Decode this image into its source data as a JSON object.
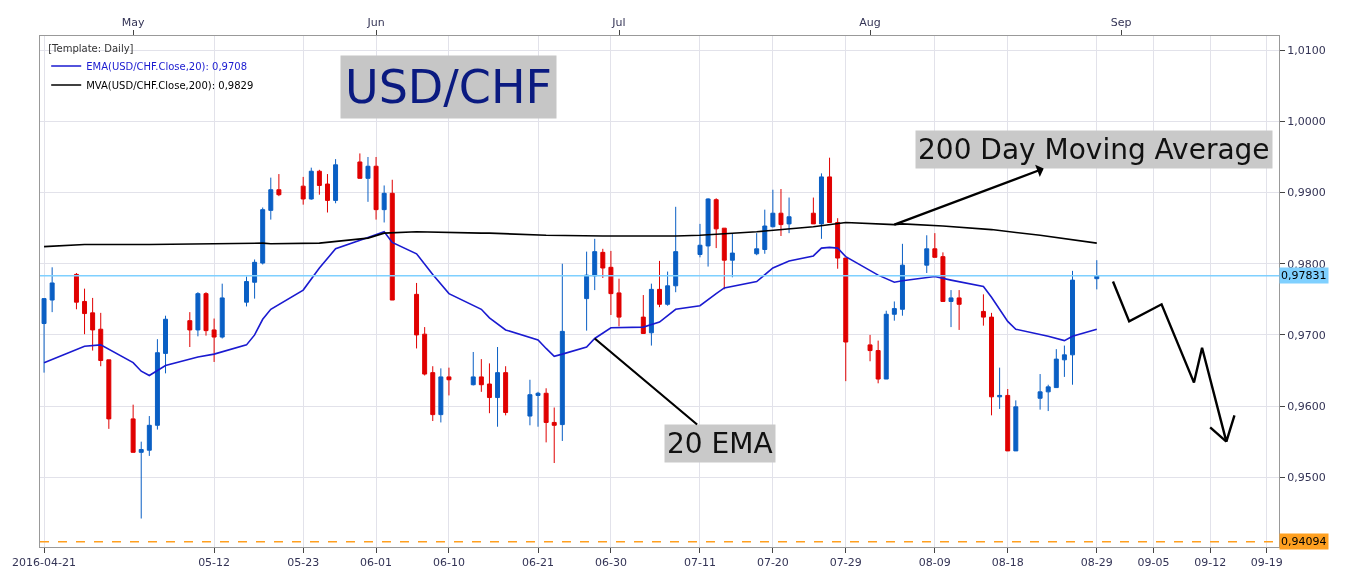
{
  "chart_data": {
    "type": "candlestick",
    "title": "USD/CHF",
    "legend_title": "[Template: Daily]",
    "x": [
      "2016-04-21",
      "2016-04-22",
      "2016-04-25",
      "2016-04-26",
      "2016-04-27",
      "2016-04-28",
      "2016-04-29",
      "2016-05-02",
      "2016-05-03",
      "2016-05-04",
      "2016-05-05",
      "2016-05-06",
      "2016-05-09",
      "2016-05-10",
      "2016-05-11",
      "2016-05-12",
      "2016-05-13",
      "2016-05-16",
      "2016-05-17",
      "2016-05-18",
      "2016-05-19",
      "2016-05-20",
      "2016-05-23",
      "2016-05-24",
      "2016-05-25",
      "2016-05-26",
      "2016-05-27",
      "2016-05-30",
      "2016-05-31",
      "2016-06-01",
      "2016-06-02",
      "2016-06-03",
      "2016-06-06",
      "2016-06-07",
      "2016-06-08",
      "2016-06-09",
      "2016-06-10",
      "2016-06-13",
      "2016-06-14",
      "2016-06-15",
      "2016-06-16",
      "2016-06-17",
      "2016-06-20",
      "2016-06-21",
      "2016-06-22",
      "2016-06-23",
      "2016-06-24",
      "2016-06-27",
      "2016-06-28",
      "2016-06-29",
      "2016-06-30",
      "2016-07-01",
      "2016-07-04",
      "2016-07-05",
      "2016-07-06",
      "2016-07-07",
      "2016-07-08",
      "2016-07-11",
      "2016-07-12",
      "2016-07-13",
      "2016-07-14",
      "2016-07-15",
      "2016-07-18",
      "2016-07-19",
      "2016-07-20",
      "2016-07-21",
      "2016-07-22",
      "2016-07-25",
      "2016-07-26",
      "2016-07-27",
      "2016-07-28",
      "2016-07-29",
      "2016-08-01",
      "2016-08-02",
      "2016-08-03",
      "2016-08-04",
      "2016-08-05",
      "2016-08-08",
      "2016-08-09",
      "2016-08-10",
      "2016-08-11",
      "2016-08-12",
      "2016-08-15",
      "2016-08-16",
      "2016-08-17",
      "2016-08-18",
      "2016-08-19",
      "2016-08-22",
      "2016-08-23",
      "2016-08-24",
      "2016-08-25",
      "2016-08-26",
      "2016-08-29"
    ],
    "ohlc": [
      [
        0.9716,
        0.9751,
        0.9647,
        0.9751
      ],
      [
        0.9749,
        0.9795,
        0.9732,
        0.9773
      ],
      [
        0.9785,
        0.9787,
        0.9736,
        0.9746
      ],
      [
        0.9747,
        0.9765,
        0.9701,
        0.973
      ],
      [
        0.9731,
        0.9752,
        0.9678,
        0.9707
      ],
      [
        0.9708,
        0.9731,
        0.9656,
        0.9664
      ],
      [
        0.9665,
        0.9665,
        0.9568,
        0.9582
      ],
      [
        0.9582,
        0.9602,
        0.9535,
        0.9535
      ],
      [
        0.9535,
        0.955,
        0.9442,
        0.9539
      ],
      [
        0.9538,
        0.9586,
        0.953,
        0.9573
      ],
      [
        0.9573,
        0.9694,
        0.9567,
        0.9675
      ],
      [
        0.9674,
        0.9727,
        0.9646,
        0.9722
      ],
      [
        0.972,
        0.9732,
        0.9683,
        0.9707
      ],
      [
        0.9707,
        0.976,
        0.9698,
        0.9758
      ],
      [
        0.9758,
        0.976,
        0.9699,
        0.9706
      ],
      [
        0.9707,
        0.9723,
        0.9662,
        0.9697
      ],
      [
        0.9697,
        0.9772,
        0.9695,
        0.9752
      ],
      [
        0.9746,
        0.9782,
        0.974,
        0.9775
      ],
      [
        0.9774,
        0.9806,
        0.9751,
        0.9802
      ],
      [
        0.9801,
        0.9879,
        0.9799,
        0.9876
      ],
      [
        0.9875,
        0.9921,
        0.9862,
        0.9904
      ],
      [
        0.9904,
        0.9926,
        0.9895,
        0.9897
      ],
      [
        0.9909,
        0.9922,
        0.9883,
        0.9891
      ],
      [
        0.9891,
        0.9935,
        0.989,
        0.993
      ],
      [
        0.993,
        0.9932,
        0.9897,
        0.991
      ],
      [
        0.9912,
        0.9926,
        0.9872,
        0.9889
      ],
      [
        0.9889,
        0.9947,
        0.9885,
        0.9939
      ],
      [
        0.9943,
        0.9955,
        0.992,
        0.992
      ],
      [
        0.992,
        0.995,
        0.9887,
        0.9937
      ],
      [
        0.9937,
        0.995,
        0.9862,
        0.9876
      ],
      [
        0.9876,
        0.991,
        0.9858,
        0.9899
      ],
      [
        0.9899,
        0.9918,
        0.9749,
        0.9749
      ],
      [
        0.9757,
        0.9773,
        0.9681,
        0.97
      ],
      [
        0.9701,
        0.9711,
        0.9643,
        0.9645
      ],
      [
        0.9647,
        0.9656,
        0.9579,
        0.9588
      ],
      [
        0.9588,
        0.9653,
        0.9577,
        0.9641
      ],
      [
        0.9641,
        0.9654,
        0.9615,
        0.9637
      ],
      [
        0.963,
        0.9676,
        0.9629,
        0.9641
      ],
      [
        0.9641,
        0.9666,
        0.962,
        0.963
      ],
      [
        0.9631,
        0.966,
        0.959,
        0.9612
      ],
      [
        0.9612,
        0.9683,
        0.9571,
        0.9647
      ],
      [
        0.9647,
        0.9656,
        0.9587,
        0.9591
      ],
      [
        0.9586,
        0.9637,
        0.9573,
        0.9616
      ],
      [
        0.9615,
        0.962,
        0.9571,
        0.9618
      ],
      [
        0.9618,
        0.9625,
        0.9549,
        0.9577
      ],
      [
        0.9577,
        0.9598,
        0.952,
        0.9573
      ],
      [
        0.9574,
        0.98,
        0.9551,
        0.9705
      ],
      [
        0.9751,
        0.9817,
        0.9706,
        0.9784
      ],
      [
        0.9783,
        0.9835,
        0.9763,
        0.9817
      ],
      [
        0.9816,
        0.9821,
        0.978,
        0.9794
      ],
      [
        0.9795,
        0.9818,
        0.9728,
        0.9758
      ],
      [
        0.9759,
        0.9779,
        0.9712,
        0.9725
      ],
      [
        0.9725,
        0.9756,
        0.9702,
        0.9702
      ],
      [
        0.9703,
        0.9772,
        0.9685,
        0.9764
      ],
      [
        0.9764,
        0.9804,
        0.9739,
        0.9743
      ],
      [
        0.9743,
        0.9789,
        0.9741,
        0.9769
      ],
      [
        0.9769,
        0.988,
        0.976,
        0.9817
      ],
      [
        0.9813,
        0.9856,
        0.9809,
        0.9826
      ],
      [
        0.9825,
        0.9892,
        0.9796,
        0.9891
      ],
      [
        0.989,
        0.9892,
        0.9822,
        0.9849
      ],
      [
        0.985,
        0.985,
        0.9764,
        0.9805
      ],
      [
        0.9805,
        0.9843,
        0.9781,
        0.9815
      ],
      [
        0.9814,
        0.9843,
        0.9812,
        0.9821
      ],
      [
        0.982,
        0.9876,
        0.9814,
        0.9853
      ],
      [
        0.9852,
        0.9904,
        0.9851,
        0.9871
      ],
      [
        0.9871,
        0.9905,
        0.9839,
        0.9855
      ],
      [
        0.9856,
        0.9893,
        0.9843,
        0.9866
      ],
      [
        0.9871,
        0.9893,
        0.9856,
        0.9856
      ],
      [
        0.9856,
        0.9927,
        0.9835,
        0.9922
      ],
      [
        0.9922,
        0.9949,
        0.9858,
        0.9858
      ],
      [
        0.9858,
        0.9864,
        0.9793,
        0.9808
      ],
      [
        0.9808,
        0.9808,
        0.9635,
        0.969
      ],
      [
        0.9686,
        0.97,
        0.9663,
        0.9678
      ],
      [
        0.9678,
        0.9692,
        0.9632,
        0.9638
      ],
      [
        0.9638,
        0.9734,
        0.9638,
        0.9729
      ],
      [
        0.9729,
        0.9747,
        0.972,
        0.9737
      ],
      [
        0.9736,
        0.9828,
        0.9727,
        0.9798
      ],
      [
        0.9798,
        0.984,
        0.9787,
        0.9821
      ],
      [
        0.9821,
        0.9843,
        0.9809,
        0.9809
      ],
      [
        0.981,
        0.9816,
        0.9747,
        0.9747
      ],
      [
        0.9747,
        0.9763,
        0.9711,
        0.9752
      ],
      [
        0.9752,
        0.9763,
        0.9707,
        0.9743
      ],
      [
        0.9733,
        0.9757,
        0.9713,
        0.9725
      ],
      [
        0.9725,
        0.9731,
        0.9587,
        0.9613
      ],
      [
        0.9613,
        0.9654,
        0.9596,
        0.9615
      ],
      [
        0.9615,
        0.9624,
        0.9537,
        0.9537
      ],
      [
        0.9537,
        0.9608,
        0.9537,
        0.9599
      ],
      [
        0.9611,
        0.9645,
        0.9595,
        0.962
      ],
      [
        0.962,
        0.963,
        0.9593,
        0.9627
      ],
      [
        0.9626,
        0.968,
        0.9626,
        0.9666
      ],
      [
        0.9665,
        0.9685,
        0.9641,
        0.9672
      ],
      [
        0.9672,
        0.979,
        0.963,
        0.9777
      ],
      [
        0.9779,
        0.9805,
        0.9764,
        0.97831
      ]
    ],
    "colors": [
      "#0a5fc4",
      "#0a5fc4",
      "#e00000",
      "#e00000",
      "#e00000",
      "#e00000",
      "#e00000",
      "#e00000",
      "#0a5fc4",
      "#0a5fc4",
      "#0a5fc4",
      "#0a5fc4",
      "#e00000",
      "#0a5fc4",
      "#e00000",
      "#e00000",
      "#0a5fc4",
      "#0a5fc4",
      "#0a5fc4",
      "#0a5fc4",
      "#0a5fc4",
      "#e00000",
      "#e00000",
      "#0a5fc4",
      "#e00000",
      "#e00000",
      "#0a5fc4",
      "#e00000",
      "#0a5fc4",
      "#e00000",
      "#0a5fc4",
      "#e00000",
      "#e00000",
      "#e00000",
      "#e00000",
      "#0a5fc4",
      "#e00000",
      "#0a5fc4",
      "#e00000",
      "#e00000",
      "#0a5fc4",
      "#e00000",
      "#0a5fc4",
      "#0a5fc4",
      "#e00000",
      "#e00000",
      "#0a5fc4",
      "#0a5fc4",
      "#0a5fc4",
      "#e00000",
      "#e00000",
      "#e00000",
      "#e00000",
      "#0a5fc4",
      "#e00000",
      "#0a5fc4",
      "#0a5fc4",
      "#0a5fc4",
      "#0a5fc4",
      "#e00000",
      "#e00000",
      "#0a5fc4",
      "#0a5fc4",
      "#0a5fc4",
      "#0a5fc4",
      "#e00000",
      "#0a5fc4",
      "#e00000",
      "#0a5fc4",
      "#e00000",
      "#e00000",
      "#e00000",
      "#e00000",
      "#e00000",
      "#0a5fc4",
      "#0a5fc4",
      "#0a5fc4",
      "#0a5fc4",
      "#e00000",
      "#e00000",
      "#0a5fc4",
      "#e00000",
      "#e00000",
      "#e00000",
      "#0a5fc4",
      "#e00000",
      "#0a5fc4",
      "#0a5fc4",
      "#0a5fc4",
      "#0a5fc4",
      "#0a5fc4",
      "#0a5fc4",
      "#0a5fc4"
    ],
    "series": [
      {
        "type": "line",
        "name": "EMA(USD/CHF.Close,20): 0,9708",
        "color": "#1a1ad0",
        "x": [
          "2016-04-21",
          "2016-04-26",
          "2016-04-28",
          "2016-05-02",
          "2016-05-03",
          "2016-05-04",
          "2016-05-06",
          "2016-05-10",
          "2016-05-12",
          "2016-05-16",
          "2016-05-17",
          "2016-05-18",
          "2016-05-19",
          "2016-05-23",
          "2016-05-25",
          "2016-05-27",
          "2016-05-31",
          "2016-06-02",
          "2016-06-03",
          "2016-06-06",
          "2016-06-08",
          "2016-06-10",
          "2016-06-14",
          "2016-06-15",
          "2016-06-17",
          "2016-06-21",
          "2016-06-22",
          "2016-06-23",
          "2016-06-24",
          "2016-06-27",
          "2016-06-28",
          "2016-06-30",
          "2016-07-04",
          "2016-07-06",
          "2016-07-08",
          "2016-07-11",
          "2016-07-13",
          "2016-07-14",
          "2016-07-18",
          "2016-07-20",
          "2016-07-22",
          "2016-07-25",
          "2016-07-26",
          "2016-07-27",
          "2016-07-28",
          "2016-07-29",
          "2016-08-02",
          "2016-08-04",
          "2016-08-05",
          "2016-08-09",
          "2016-08-11",
          "2016-08-15",
          "2016-08-16",
          "2016-08-18",
          "2016-08-19",
          "2016-08-23",
          "2016-08-25",
          "2016-08-26",
          "2016-08-29"
        ],
        "values": [
          0.9661,
          0.9684,
          0.9686,
          0.9661,
          0.9649,
          0.9643,
          0.9657,
          0.9669,
          0.9673,
          0.9686,
          0.97,
          0.9722,
          0.9736,
          0.9763,
          0.9794,
          0.9821,
          0.9837,
          0.9845,
          0.983,
          0.9814,
          0.9785,
          0.9758,
          0.9736,
          0.9724,
          0.9707,
          0.9693,
          0.9681,
          0.967,
          0.9673,
          0.9683,
          0.9695,
          0.971,
          0.9711,
          0.9718,
          0.9736,
          0.9741,
          0.9758,
          0.9766,
          0.9775,
          0.9794,
          0.9804,
          0.9811,
          0.9822,
          0.9823,
          0.9822,
          0.981,
          0.9784,
          0.9774,
          0.9776,
          0.9782,
          0.9777,
          0.9768,
          0.9753,
          0.9719,
          0.9708,
          0.9698,
          0.9692,
          0.9698,
          0.9708
        ]
      },
      {
        "type": "line",
        "name": "MVA(USD/CHF.Close,200): 0,9829",
        "color": "#000000",
        "x": [
          "2016-04-21",
          "2016-04-26",
          "2016-05-04",
          "2016-05-12",
          "2016-05-18",
          "2016-05-19",
          "2016-05-25",
          "2016-05-31",
          "2016-06-02",
          "2016-06-06",
          "2016-06-14",
          "2016-06-15",
          "2016-06-22",
          "2016-06-29",
          "2016-07-08",
          "2016-07-11",
          "2016-07-18",
          "2016-07-25",
          "2016-07-29",
          "2016-08-04",
          "2016-08-05",
          "2016-08-10",
          "2016-08-16",
          "2016-08-22",
          "2016-08-29"
        ],
        "values": [
          0.9824,
          0.9827,
          0.9827,
          0.9828,
          0.9829,
          0.9828,
          0.9829,
          0.9836,
          0.9843,
          0.9845,
          0.9843,
          0.9843,
          0.984,
          0.9839,
          0.9839,
          0.984,
          0.9845,
          0.9852,
          0.9858,
          0.9855,
          0.9856,
          0.9853,
          0.9848,
          0.984,
          0.9829
        ]
      },
      {
        "type": "line",
        "color": "#000000",
        "x": [
          "2016-08-31",
          "2016-09-02",
          "2016-09-06",
          "2016-09-10",
          "2016-09-11",
          "2016-09-14",
          "2016-09-15"
        ],
        "values": [
          0.9775,
          0.9719,
          0.9743,
          0.9633,
          0.9682,
          0.955,
          0.9587
        ]
      },
      {
        "type": "line",
        "color": "#000000",
        "x": [
          "2016-09-12",
          "2016-09-14"
        ],
        "values": [
          0.957,
          0.955
        ]
      }
    ],
    "annotations": [
      {
        "text": "200 Day Moving Average",
        "x": "2016-08-04",
        "y": 0.9855
      },
      {
        "text": "20 EMA",
        "x": "2016-06-28",
        "y": 0.9695
      }
    ],
    "ref_lines": [
      {
        "axis": "y",
        "value": 0.97831,
        "label": "0,97831",
        "color": "#7fd0ff",
        "line_style": "solid"
      },
      {
        "axis": "y",
        "value": 0.94094,
        "label": "0,94094",
        "color": "#ffa020",
        "line_style": "dashed"
      }
    ],
    "xlim": [
      "2016-04-20T12:00",
      "2016-09-20T12:00"
    ],
    "xticks": [
      {
        "value": "2016-04-21",
        "label": "2016-04-21"
      },
      {
        "value": "2016-05-12",
        "label": "05-12"
      },
      {
        "value": "2016-05-23",
        "label": "05-23"
      },
      {
        "value": "2016-06-01",
        "label": "06-01"
      },
      {
        "value": "2016-06-10",
        "label": "06-10"
      },
      {
        "value": "2016-06-21",
        "label": "06-21"
      },
      {
        "value": "2016-06-30",
        "label": "06-30"
      },
      {
        "value": "2016-07-11",
        "label": "07-11"
      },
      {
        "value": "2016-07-20",
        "label": "07-20"
      },
      {
        "value": "2016-07-29",
        "label": "07-29"
      },
      {
        "value": "2016-08-09",
        "label": "08-09"
      },
      {
        "value": "2016-08-18",
        "label": "08-18"
      },
      {
        "value": "2016-08-29",
        "label": "08-29"
      },
      {
        "value": "2016-09-05",
        "label": "09-05"
      },
      {
        "value": "2016-09-12",
        "label": "09-12"
      },
      {
        "value": "2016-09-19",
        "label": "09-19"
      }
    ],
    "x2lim": [
      "2016-04-20T12:00",
      "2016-09-20T12:00"
    ],
    "x2ticks": [
      {
        "value": "2016-05-02",
        "label": "May"
      },
      {
        "value": "2016-06-01",
        "label": "Jun"
      },
      {
        "value": "2016-07-01",
        "label": "Jul"
      },
      {
        "value": "2016-08-01",
        "label": "Aug"
      },
      {
        "value": "2016-09-01",
        "label": "Sep"
      }
    ],
    "ylim": [
      0.9402,
      1.012
    ],
    "yticks": [
      {
        "value": 0.95,
        "label": "0,9500"
      },
      {
        "value": 0.96,
        "label": "0,9600"
      },
      {
        "value": 0.97,
        "label": "0,9700"
      },
      {
        "value": 0.98,
        "label": "0,9800"
      },
      {
        "value": 0.99,
        "label": "0,9900"
      },
      {
        "value": 1.0,
        "label": "1,0000"
      },
      {
        "value": 1.01,
        "label": "1,0100"
      }
    ],
    "grid": true,
    "legend": "top left"
  }
}
